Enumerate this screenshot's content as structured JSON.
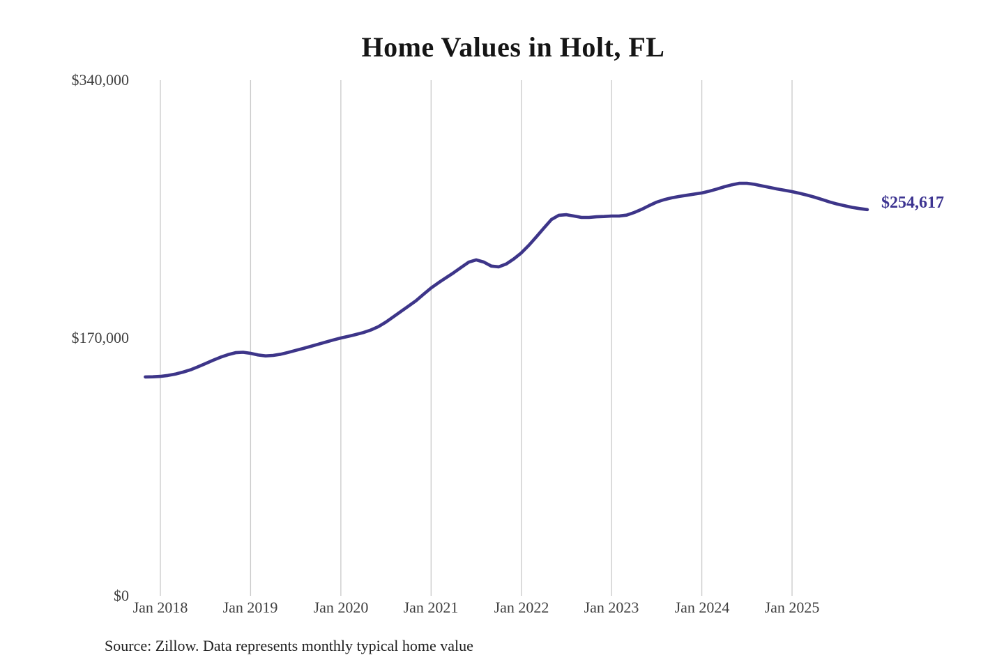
{
  "title": "Home Values in Holt, FL",
  "source_note": "Source: Zillow. Data represents monthly typical home value",
  "latest_value_label": "$254,617",
  "colors": {
    "line": "#3d3589",
    "value_label": "#3d3491",
    "grid": "#c9c9c9",
    "tick_text": "#404040",
    "title_text": "#151515",
    "source_text": "#1f1f1f",
    "background": "#ffffff"
  },
  "chart_data": {
    "type": "line",
    "title": "Home Values in Holt, FL",
    "xlabel": "",
    "ylabel": "",
    "ylim": [
      0,
      340000
    ],
    "y_ticks": [
      0,
      170000,
      340000
    ],
    "y_tick_labels": [
      "$0",
      "$170,000",
      "$340,000"
    ],
    "x_tick_labels": [
      "Jan 2018",
      "Jan 2019",
      "Jan 2020",
      "Jan 2021",
      "Jan 2022",
      "Jan 2023",
      "Jan 2024",
      "Jan 2025"
    ],
    "grid": "vertical-only",
    "legend": "none",
    "x_start": "Nov 2017",
    "x_end": "Nov 2025",
    "frequency": "monthly",
    "last_value": 254617,
    "last_value_label": "$254,617",
    "series": [
      {
        "name": "Typical home value",
        "values": [
          144300,
          144400,
          144700,
          145300,
          146200,
          147500,
          149000,
          151000,
          153100,
          155300,
          157300,
          159000,
          160300,
          160600,
          159900,
          158800,
          158200,
          158500,
          159300,
          160500,
          161800,
          163100,
          164500,
          165900,
          167300,
          168700,
          170000,
          171100,
          172300,
          173600,
          175300,
          177500,
          180500,
          184000,
          187500,
          191000,
          194600,
          198800,
          203000,
          206500,
          209800,
          213000,
          216500,
          220000,
          221500,
          220100,
          217400,
          216900,
          218800,
          222100,
          226100,
          231100,
          236700,
          242500,
          248100,
          250900,
          251300,
          250400,
          249500,
          249500,
          249900,
          250100,
          250400,
          250400,
          251000,
          252700,
          254800,
          257300,
          259600,
          261200,
          262400,
          263300,
          264100,
          264900,
          265600,
          266800,
          268200,
          269700,
          271000,
          272000,
          272000,
          271300,
          270300,
          269300,
          268300,
          267400,
          266500,
          265400,
          264200,
          262800,
          261300,
          259700,
          258300,
          257200,
          256100,
          255300,
          254617
        ]
      }
    ]
  }
}
